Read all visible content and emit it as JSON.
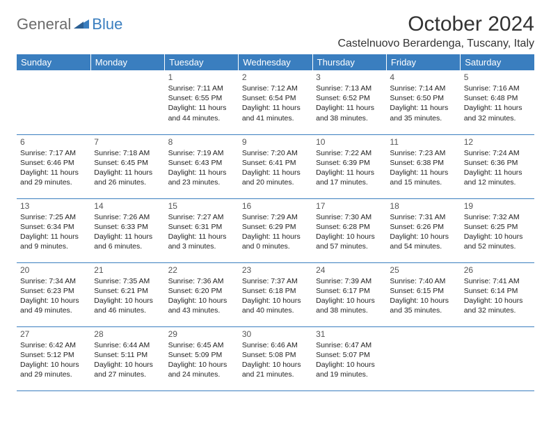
{
  "logo": {
    "general": "General",
    "blue": "Blue"
  },
  "title": "October 2024",
  "location": "Castelnuovo Berardenga, Tuscany, Italy",
  "colors": {
    "header_bg": "#3a7ebf",
    "header_text": "#ffffff",
    "border": "#3a7ebf",
    "daynum": "#555555",
    "body_text": "#222222",
    "logo_gray": "#6b6b6b",
    "logo_blue": "#3a7ebf",
    "background": "#ffffff"
  },
  "dayHeaders": [
    "Sunday",
    "Monday",
    "Tuesday",
    "Wednesday",
    "Thursday",
    "Friday",
    "Saturday"
  ],
  "weeks": [
    [
      null,
      null,
      {
        "n": "1",
        "sr": "7:11 AM",
        "ss": "6:55 PM",
        "dl": "11 hours and 44 minutes."
      },
      {
        "n": "2",
        "sr": "7:12 AM",
        "ss": "6:54 PM",
        "dl": "11 hours and 41 minutes."
      },
      {
        "n": "3",
        "sr": "7:13 AM",
        "ss": "6:52 PM",
        "dl": "11 hours and 38 minutes."
      },
      {
        "n": "4",
        "sr": "7:14 AM",
        "ss": "6:50 PM",
        "dl": "11 hours and 35 minutes."
      },
      {
        "n": "5",
        "sr": "7:16 AM",
        "ss": "6:48 PM",
        "dl": "11 hours and 32 minutes."
      }
    ],
    [
      {
        "n": "6",
        "sr": "7:17 AM",
        "ss": "6:46 PM",
        "dl": "11 hours and 29 minutes."
      },
      {
        "n": "7",
        "sr": "7:18 AM",
        "ss": "6:45 PM",
        "dl": "11 hours and 26 minutes."
      },
      {
        "n": "8",
        "sr": "7:19 AM",
        "ss": "6:43 PM",
        "dl": "11 hours and 23 minutes."
      },
      {
        "n": "9",
        "sr": "7:20 AM",
        "ss": "6:41 PM",
        "dl": "11 hours and 20 minutes."
      },
      {
        "n": "10",
        "sr": "7:22 AM",
        "ss": "6:39 PM",
        "dl": "11 hours and 17 minutes."
      },
      {
        "n": "11",
        "sr": "7:23 AM",
        "ss": "6:38 PM",
        "dl": "11 hours and 15 minutes."
      },
      {
        "n": "12",
        "sr": "7:24 AM",
        "ss": "6:36 PM",
        "dl": "11 hours and 12 minutes."
      }
    ],
    [
      {
        "n": "13",
        "sr": "7:25 AM",
        "ss": "6:34 PM",
        "dl": "11 hours and 9 minutes."
      },
      {
        "n": "14",
        "sr": "7:26 AM",
        "ss": "6:33 PM",
        "dl": "11 hours and 6 minutes."
      },
      {
        "n": "15",
        "sr": "7:27 AM",
        "ss": "6:31 PM",
        "dl": "11 hours and 3 minutes."
      },
      {
        "n": "16",
        "sr": "7:29 AM",
        "ss": "6:29 PM",
        "dl": "11 hours and 0 minutes."
      },
      {
        "n": "17",
        "sr": "7:30 AM",
        "ss": "6:28 PM",
        "dl": "10 hours and 57 minutes."
      },
      {
        "n": "18",
        "sr": "7:31 AM",
        "ss": "6:26 PM",
        "dl": "10 hours and 54 minutes."
      },
      {
        "n": "19",
        "sr": "7:32 AM",
        "ss": "6:25 PM",
        "dl": "10 hours and 52 minutes."
      }
    ],
    [
      {
        "n": "20",
        "sr": "7:34 AM",
        "ss": "6:23 PM",
        "dl": "10 hours and 49 minutes."
      },
      {
        "n": "21",
        "sr": "7:35 AM",
        "ss": "6:21 PM",
        "dl": "10 hours and 46 minutes."
      },
      {
        "n": "22",
        "sr": "7:36 AM",
        "ss": "6:20 PM",
        "dl": "10 hours and 43 minutes."
      },
      {
        "n": "23",
        "sr": "7:37 AM",
        "ss": "6:18 PM",
        "dl": "10 hours and 40 minutes."
      },
      {
        "n": "24",
        "sr": "7:39 AM",
        "ss": "6:17 PM",
        "dl": "10 hours and 38 minutes."
      },
      {
        "n": "25",
        "sr": "7:40 AM",
        "ss": "6:15 PM",
        "dl": "10 hours and 35 minutes."
      },
      {
        "n": "26",
        "sr": "7:41 AM",
        "ss": "6:14 PM",
        "dl": "10 hours and 32 minutes."
      }
    ],
    [
      {
        "n": "27",
        "sr": "6:42 AM",
        "ss": "5:12 PM",
        "dl": "10 hours and 29 minutes."
      },
      {
        "n": "28",
        "sr": "6:44 AM",
        "ss": "5:11 PM",
        "dl": "10 hours and 27 minutes."
      },
      {
        "n": "29",
        "sr": "6:45 AM",
        "ss": "5:09 PM",
        "dl": "10 hours and 24 minutes."
      },
      {
        "n": "30",
        "sr": "6:46 AM",
        "ss": "5:08 PM",
        "dl": "10 hours and 21 minutes."
      },
      {
        "n": "31",
        "sr": "6:47 AM",
        "ss": "5:07 PM",
        "dl": "10 hours and 19 minutes."
      },
      null,
      null
    ]
  ],
  "labels": {
    "sunrise": "Sunrise: ",
    "sunset": "Sunset: ",
    "daylight": "Daylight: "
  }
}
